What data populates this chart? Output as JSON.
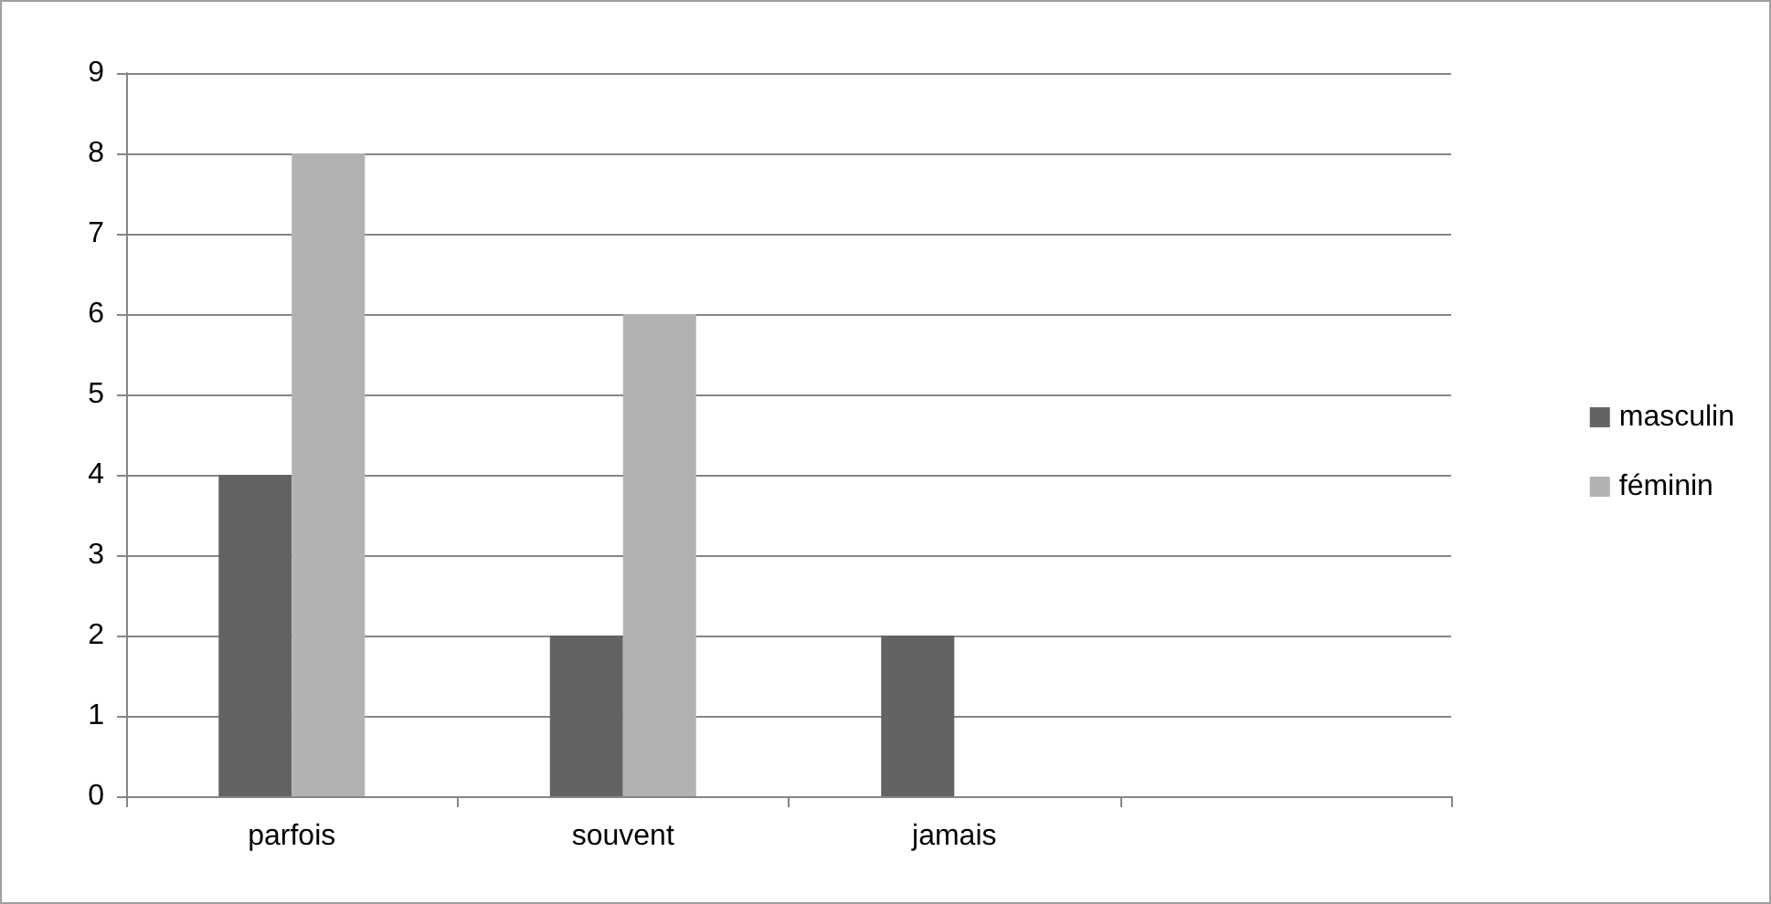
{
  "chart_data": {
    "type": "bar",
    "categories": [
      "parfois",
      "souvent",
      "jamais",
      null
    ],
    "series": [
      {
        "name": "masculin",
        "color": "#636363",
        "values": [
          4,
          2,
          2,
          null
        ]
      },
      {
        "name": "féminin",
        "color": "#b2b2b2",
        "values": [
          8,
          6,
          null,
          null
        ]
      }
    ],
    "ylim": [
      0,
      9
    ],
    "yticks": [
      0,
      1,
      2,
      3,
      4,
      5,
      6,
      7,
      8,
      9
    ],
    "grid": "y",
    "legend": "right"
  }
}
